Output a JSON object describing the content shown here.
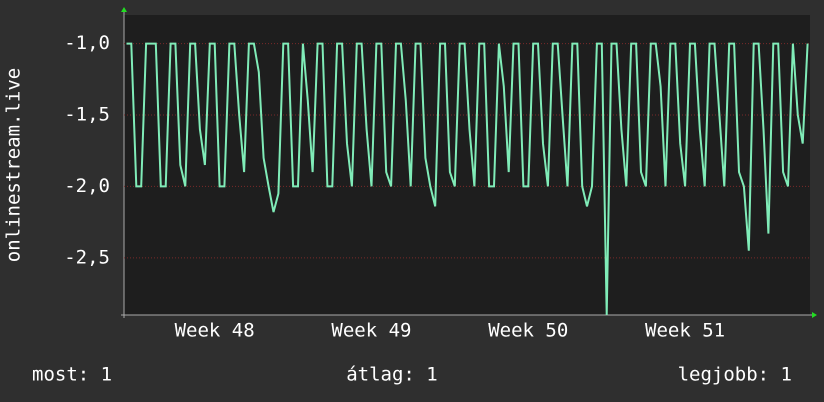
{
  "chart_data": {
    "type": "line",
    "y_label": "onlinestream.live",
    "categories": [
      null,
      null,
      null,
      null,
      null,
      null,
      null,
      null,
      null,
      null,
      null,
      null,
      null,
      null,
      null,
      null,
      null,
      null,
      "Week 48",
      null,
      null,
      null,
      null,
      null,
      null,
      null,
      null,
      null,
      null,
      null,
      null,
      null,
      null,
      null,
      null,
      null,
      null,
      null,
      null,
      null,
      null,
      null,
      null,
      null,
      null,
      null,
      null,
      null,
      null,
      null,
      "Week 49",
      null,
      null,
      null,
      null,
      null,
      null,
      null,
      null,
      null,
      null,
      null,
      null,
      null,
      null,
      null,
      null,
      null,
      null,
      null,
      null,
      null,
      null,
      null,
      null,
      null,
      null,
      null,
      null,
      null,
      null,
      null,
      "Week 50",
      null,
      null,
      null,
      null,
      null,
      null,
      null,
      null,
      null,
      null,
      null,
      null,
      null,
      null,
      null,
      null,
      null,
      null,
      null,
      null,
      null,
      null,
      null,
      null,
      null,
      null,
      null,
      null,
      null,
      null,
      null,
      "Week 51",
      null,
      null,
      null,
      null,
      null,
      null,
      null,
      null,
      null,
      null,
      null,
      null,
      null,
      null,
      null,
      null,
      null,
      null,
      null,
      null,
      null,
      null,
      null,
      null,
      null
    ],
    "series": [
      {
        "color": "#80ecb8",
        "values": [
          -1,
          -1,
          -2,
          -2,
          -1,
          -1,
          -1,
          -2,
          -2,
          -1,
          -1,
          -1.85,
          -2,
          -1,
          -1,
          -1.6,
          -1.85,
          -1,
          -1,
          -2,
          -2,
          -1,
          -1,
          -1.5,
          -1.9,
          -1,
          -1,
          -1.2,
          -1.8,
          -2,
          -2.18,
          -2.05,
          -1,
          -1,
          -2,
          -2,
          -1,
          -1.4,
          -1.9,
          -1,
          -1,
          -2,
          -2,
          -1,
          -1,
          -1.7,
          -2,
          -1,
          -1,
          -1.6,
          -2,
          -1,
          -1,
          -1.9,
          -2,
          -1,
          -1,
          -1.4,
          -2,
          -1,
          -1,
          -1.8,
          -2,
          -2.14,
          -1,
          -1,
          -1.9,
          -2,
          -1,
          -1,
          -1.6,
          -2,
          -1,
          -1,
          -2,
          -2,
          -1,
          -1.3,
          -1.9,
          -1,
          -1,
          -2,
          -2,
          -1,
          -1,
          -1.7,
          -2,
          -1,
          -1,
          -1.5,
          -2,
          -1,
          -1,
          -2,
          -2.14,
          -2,
          -1,
          -1,
          -2.9,
          -1,
          -1,
          -1.6,
          -2,
          -1,
          -1,
          -1.9,
          -2,
          -1,
          -1,
          -1.3,
          -2,
          -1,
          -1,
          -1.7,
          -2,
          -1,
          -1,
          -1.6,
          -2,
          -1,
          -1,
          -1.5,
          -2,
          -1,
          -1,
          -1.9,
          -2,
          -2.45,
          -1,
          -1,
          -1.6,
          -2.33,
          -1,
          -1,
          -1.9,
          -2,
          -1,
          -1.5,
          -1.7,
          -1
        ]
      }
    ],
    "ylim": [
      -2.9,
      -0.8
    ],
    "yticks": [
      {
        "value": -1,
        "label": "-1,0"
      },
      {
        "value": -1.5,
        "label": "-1,5"
      },
      {
        "value": -2,
        "label": "-2,0"
      },
      {
        "value": -2.5,
        "label": "-2,5"
      }
    ],
    "grid": true
  },
  "footer": [
    "most: 1",
    "átlag: 1",
    "legjobb: 1"
  ]
}
